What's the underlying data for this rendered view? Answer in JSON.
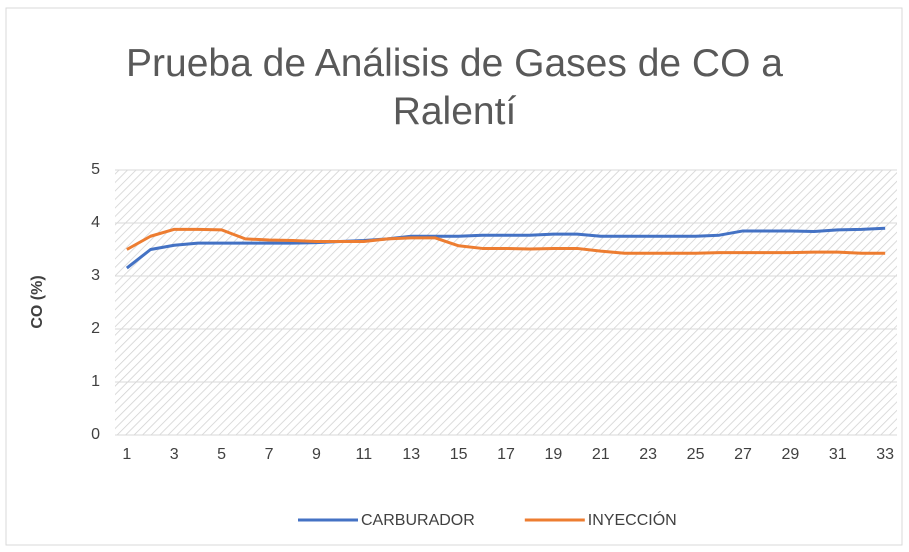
{
  "chart_data": {
    "type": "line",
    "title": "Prueba de Análisis de Gases de CO a Ralentí",
    "y_label": "CO (%)",
    "categories": [
      1,
      null,
      3,
      null,
      5,
      null,
      7,
      null,
      9,
      null,
      11,
      null,
      13,
      null,
      15,
      null,
      17,
      null,
      19,
      null,
      21,
      null,
      23,
      null,
      25,
      null,
      27,
      null,
      29,
      null,
      31,
      null,
      33
    ],
    "series": [
      {
        "name": "CARBURADOR",
        "color": "#4472c4",
        "values": [
          3.15,
          3.5,
          3.58,
          3.62,
          3.62,
          3.62,
          3.62,
          3.62,
          3.63,
          3.65,
          3.67,
          3.7,
          3.75,
          3.75,
          3.75,
          3.77,
          3.77,
          3.77,
          3.79,
          3.79,
          3.75,
          3.75,
          3.75,
          3.75,
          3.75,
          3.77,
          3.85,
          3.85,
          3.85,
          3.84,
          3.87,
          3.88,
          3.9
        ]
      },
      {
        "name": "INYECCIÓN",
        "color": "#ed7d31",
        "values": [
          3.5,
          3.75,
          3.88,
          3.88,
          3.87,
          3.7,
          3.68,
          3.67,
          3.65,
          3.65,
          3.65,
          3.7,
          3.72,
          3.72,
          3.57,
          3.52,
          3.52,
          3.51,
          3.52,
          3.52,
          3.47,
          3.43,
          3.43,
          3.43,
          3.43,
          3.44,
          3.44,
          3.44,
          3.44,
          3.45,
          3.45,
          3.43,
          3.43
        ]
      }
    ],
    "ylim": [
      0,
      5
    ],
    "yticks": [
      0,
      1,
      2,
      3,
      4,
      5
    ],
    "grid": true,
    "legend": "bottom"
  }
}
